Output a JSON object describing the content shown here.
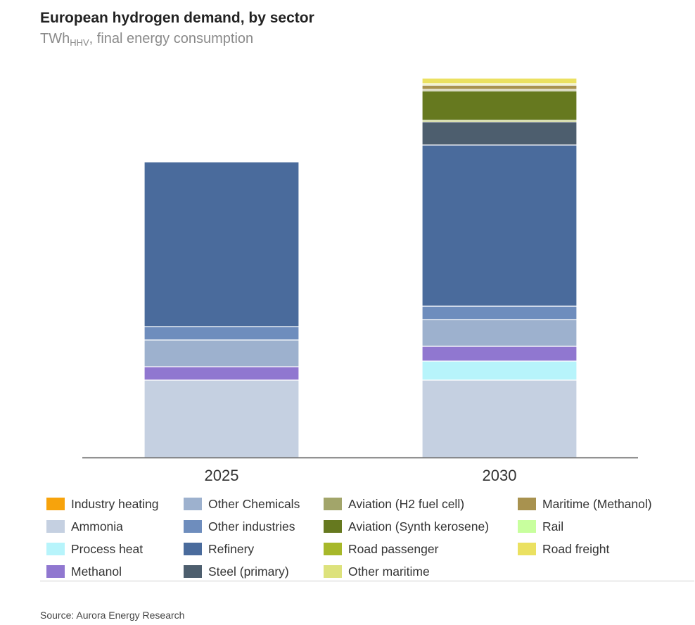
{
  "chart_data": {
    "type": "bar",
    "stacked": true,
    "title": "European hydrogen demand, by sector",
    "subtitle_main": "TWh",
    "subtitle_sub": "HHV",
    "subtitle_rest": ", final energy consumption",
    "categories": [
      "2025",
      "2030"
    ],
    "xlabel": "",
    "ylabel": "",
    "ylim": [
      0,
      545
    ],
    "grid": false,
    "legend_position": "bottom",
    "series": [
      {
        "name": "Ammonia",
        "color": "#c5d0e1",
        "values": [
          110,
          110
        ]
      },
      {
        "name": "Process heat",
        "color": "#b7f4fb",
        "values": [
          0,
          27
        ]
      },
      {
        "name": "Methanol",
        "color": "#9077d0",
        "values": [
          19,
          21
        ]
      },
      {
        "name": "Other Chemicals",
        "color": "#9db1ce",
        "values": [
          38,
          38
        ]
      },
      {
        "name": "Other industries",
        "color": "#6e8dbd",
        "values": [
          19,
          19
        ]
      },
      {
        "name": "Refinery",
        "color": "#4a6b9c",
        "values": [
          234,
          229
        ]
      },
      {
        "name": "Steel (primary)",
        "color": "#4d5e6e",
        "values": [
          0,
          33
        ]
      },
      {
        "name": "Rail",
        "color": "#c8ff9e",
        "values": [
          0,
          0
        ]
      },
      {
        "name": "Road passenger",
        "color": "#a7b82a",
        "values": [
          0,
          2
        ]
      },
      {
        "name": "Aviation (Synth kerosene)",
        "color": "#66791f",
        "values": [
          0,
          42
        ]
      },
      {
        "name": "Aviation (H2 fuel cell)",
        "color": "#a2a56a",
        "values": [
          0,
          2
        ]
      },
      {
        "name": "Maritime (Methanol)",
        "color": "#a8924f",
        "values": [
          0,
          6
        ]
      },
      {
        "name": "Other maritime",
        "color": "#dde27c",
        "values": [
          0,
          2
        ]
      },
      {
        "name": "Road freight",
        "color": "#ebe161",
        "values": [
          0,
          8
        ]
      },
      {
        "name": "Industry heating",
        "color": "#f7a30c",
        "values": [
          0,
          0
        ]
      }
    ],
    "legend_order": [
      "Industry heating",
      "Ammonia",
      "Process heat",
      "Methanol",
      "Other Chemicals",
      "Other industries",
      "Refinery",
      "Steel (primary)",
      "Aviation (H2 fuel cell)",
      "Aviation (Synth kerosene)",
      "Road passenger",
      "Other maritime",
      "Maritime (Methanol)",
      "Rail",
      "Road freight"
    ],
    "colors": {
      "axis": "#555555",
      "segment_separator": "#ffffff"
    }
  },
  "legend": {
    "items": [
      {
        "label": "Industry heating",
        "color": "#f7a30c"
      },
      {
        "label": "Ammonia",
        "color": "#c5d0e1"
      },
      {
        "label": "Process heat",
        "color": "#b7f4fb"
      },
      {
        "label": "Methanol",
        "color": "#9077d0"
      },
      {
        "label": "Other Chemicals",
        "color": "#9db1ce"
      },
      {
        "label": "Other industries",
        "color": "#6e8dbd"
      },
      {
        "label": "Refinery",
        "color": "#4a6b9c"
      },
      {
        "label": "Steel (primary)",
        "color": "#4d5e6e"
      },
      {
        "label": "Aviation (H2 fuel cell)",
        "color": "#a2a56a"
      },
      {
        "label": "Aviation (Synth kerosene)",
        "color": "#66791f"
      },
      {
        "label": "Road passenger",
        "color": "#a7b82a"
      },
      {
        "label": "Other maritime",
        "color": "#dde27c"
      },
      {
        "label": "Maritime (Methanol)",
        "color": "#a8924f"
      },
      {
        "label": "Rail",
        "color": "#c8ff9e"
      },
      {
        "label": "Road freight",
        "color": "#ebe161"
      }
    ]
  },
  "source": "Source: Aurora Energy Research"
}
